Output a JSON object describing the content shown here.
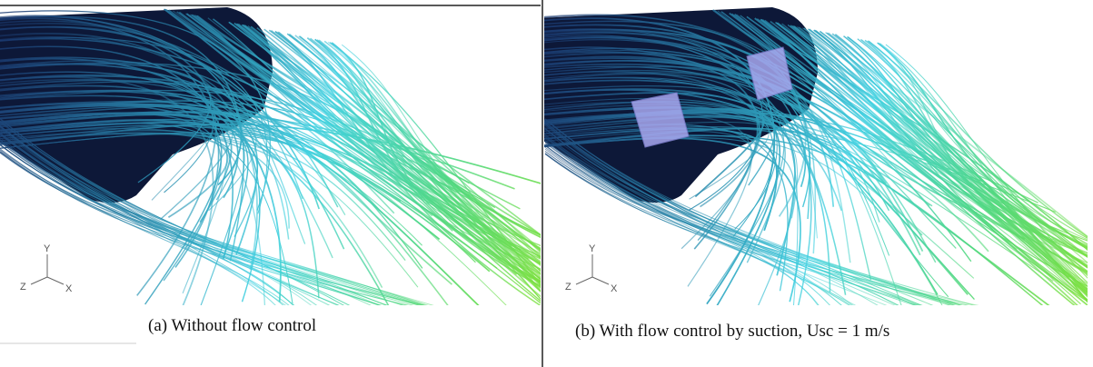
{
  "panels": [
    {
      "caption": "(a) Without flow control",
      "axes": {
        "y": "Y",
        "z": "Z",
        "x": "X"
      }
    },
    {
      "caption": "(b) With flow control by suction, Usc = 1 m/s",
      "axes": {
        "y": "Y",
        "z": "Z",
        "x": "X"
      }
    }
  ]
}
